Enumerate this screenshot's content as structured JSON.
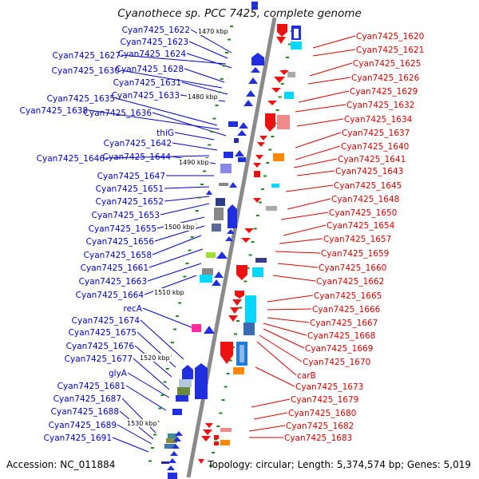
{
  "title": "Cyanothece sp. PCC 7425, complete genome",
  "accession": "Accession: NC_011884",
  "topology": "Topology: circular; Length: 5,374,574 bp; Genes: 5,019",
  "colors": {
    "left_label": "#0000cc",
    "right_label": "#dd0000",
    "backbone": "#8a8a8a",
    "tick": "#1a8a1a",
    "left_gene": "#1f2fe0",
    "right_gene": "#ee1111"
  },
  "kbp_markers": [
    "1470 kbp",
    "1480 kbp",
    "1490 kbp",
    "1500 kbp",
    "1510 kbp",
    "1520 kbp",
    "1530 kbp"
  ],
  "left_labels": [
    "Cyan7425_1622",
    "Cyan7425_1623",
    "Cyan7425_1627",
    "Cyan7425_1624",
    "Cyan7425_1628",
    "Cyan7425_1630",
    "Cyan7425_1631",
    "Cyan7425_1633",
    "Cyan7425_1635",
    "Cyan7425_1638",
    "Cyan7425_1636",
    "thiG",
    "Cyan7425_1642",
    "Cyan7425_1646",
    "Cyan7425_1644",
    "Cyan7425_1647",
    "Cyan7425_1651",
    "Cyan7425_1652",
    "Cyan7425_1653",
    "Cyan7425_1655",
    "Cyan7425_1656",
    "Cyan7425_1658",
    "Cyan7425_1661",
    "Cyan7425_1663",
    "Cyan7425_1664",
    "recA",
    "Cyan7425_1674",
    "Cyan7425_1675",
    "Cyan7425_1676",
    "Cyan7425_1677",
    "glyA",
    "Cyan7425_1681",
    "Cyan7425_1687",
    "Cyan7425_1688",
    "Cyan7425_1689",
    "Cyan7425_1691"
  ],
  "right_labels": [
    "Cyan7425_1620",
    "Cyan7425_1621",
    "Cyan7425_1625",
    "Cyan7425_1626",
    "Cyan7425_1629",
    "Cyan7425_1632",
    "Cyan7425_1634",
    "Cyan7425_1637",
    "Cyan7425_1640",
    "Cyan7425_1641",
    "Cyan7425_1643",
    "Cyan7425_1645",
    "Cyan7425_1648",
    "Cyan7425_1650",
    "Cyan7425_1654",
    "Cyan7425_1657",
    "Cyan7425_1659",
    "Cyan7425_1660",
    "Cyan7425_1662",
    "Cyan7425_1665",
    "Cyan7425_1666",
    "Cyan7425_1667",
    "Cyan7425_1668",
    "Cyan7425_1669",
    "Cyan7425_1670",
    "carB",
    "Cyan7425_1673",
    "Cyan7425_1679",
    "Cyan7425_1680",
    "Cyan7425_1682",
    "Cyan7425_1683"
  ]
}
